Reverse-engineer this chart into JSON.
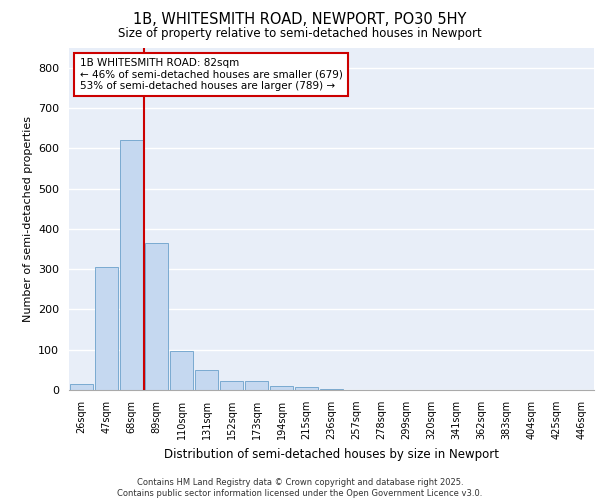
{
  "title_line1": "1B, WHITESMITH ROAD, NEWPORT, PO30 5HY",
  "title_line2": "Size of property relative to semi-detached houses in Newport",
  "xlabel": "Distribution of semi-detached houses by size in Newport",
  "ylabel": "Number of semi-detached properties",
  "bar_color": "#c5d8f0",
  "bar_edge_color": "#7aaad0",
  "background_color": "#e8eef8",
  "grid_color": "#ffffff",
  "annotation_box_color": "#cc0000",
  "property_line_color": "#cc0000",
  "annotation_text": "1B WHITESMITH ROAD: 82sqm\n← 46% of semi-detached houses are smaller (679)\n53% of semi-detached houses are larger (789) →",
  "footer_line1": "Contains HM Land Registry data © Crown copyright and database right 2025.",
  "footer_line2": "Contains public sector information licensed under the Open Government Licence v3.0.",
  "categories": [
    "26sqm",
    "47sqm",
    "68sqm",
    "89sqm",
    "110sqm",
    "131sqm",
    "152sqm",
    "173sqm",
    "194sqm",
    "215sqm",
    "236sqm",
    "257sqm",
    "278sqm",
    "299sqm",
    "320sqm",
    "341sqm",
    "362sqm",
    "383sqm",
    "404sqm",
    "425sqm",
    "446sqm"
  ],
  "values": [
    15,
    305,
    620,
    365,
    97,
    50,
    22,
    22,
    10,
    8,
    2,
    1,
    1,
    0,
    0,
    0,
    0,
    0,
    0,
    0,
    0
  ],
  "property_line_x": 2.5,
  "ylim": [
    0,
    850
  ],
  "yticks": [
    0,
    100,
    200,
    300,
    400,
    500,
    600,
    700,
    800
  ]
}
